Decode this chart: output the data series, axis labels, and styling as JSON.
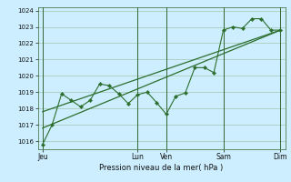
{
  "background_color": "#cceeff",
  "grid_color": "#99bb99",
  "line_color": "#2d6e2d",
  "ylim": [
    1015.5,
    1024.2
  ],
  "yticks": [
    1016,
    1017,
    1018,
    1019,
    1020,
    1021,
    1022,
    1023,
    1024
  ],
  "xlabel": "Pression niveau de la mer( hPa )",
  "xtick_labels": [
    "Jeu",
    "Lun",
    "Ven",
    "Sam",
    "Dim"
  ],
  "xtick_positions": [
    0,
    10,
    13,
    19,
    25
  ],
  "vline_positions": [
    0,
    10,
    13,
    19,
    25
  ],
  "series1_x": [
    0,
    1,
    2,
    3,
    4,
    5,
    6,
    7,
    8,
    9,
    10,
    11,
    12,
    13,
    14,
    15,
    16,
    17,
    18,
    19,
    20,
    21,
    22,
    23,
    24,
    25
  ],
  "series1_y": [
    1015.8,
    1017.0,
    1018.9,
    1018.5,
    1018.1,
    1018.5,
    1019.5,
    1019.4,
    1018.9,
    1018.3,
    1018.85,
    1019.0,
    1018.35,
    1017.65,
    1018.75,
    1018.95,
    1020.5,
    1020.5,
    1020.2,
    1022.8,
    1023.0,
    1022.9,
    1023.5,
    1023.5,
    1022.8,
    1022.8
  ],
  "series2_x": [
    0,
    25
  ],
  "series2_y": [
    1016.8,
    1022.8
  ],
  "series3_x": [
    0,
    25
  ],
  "series3_y": [
    1017.8,
    1022.8
  ]
}
